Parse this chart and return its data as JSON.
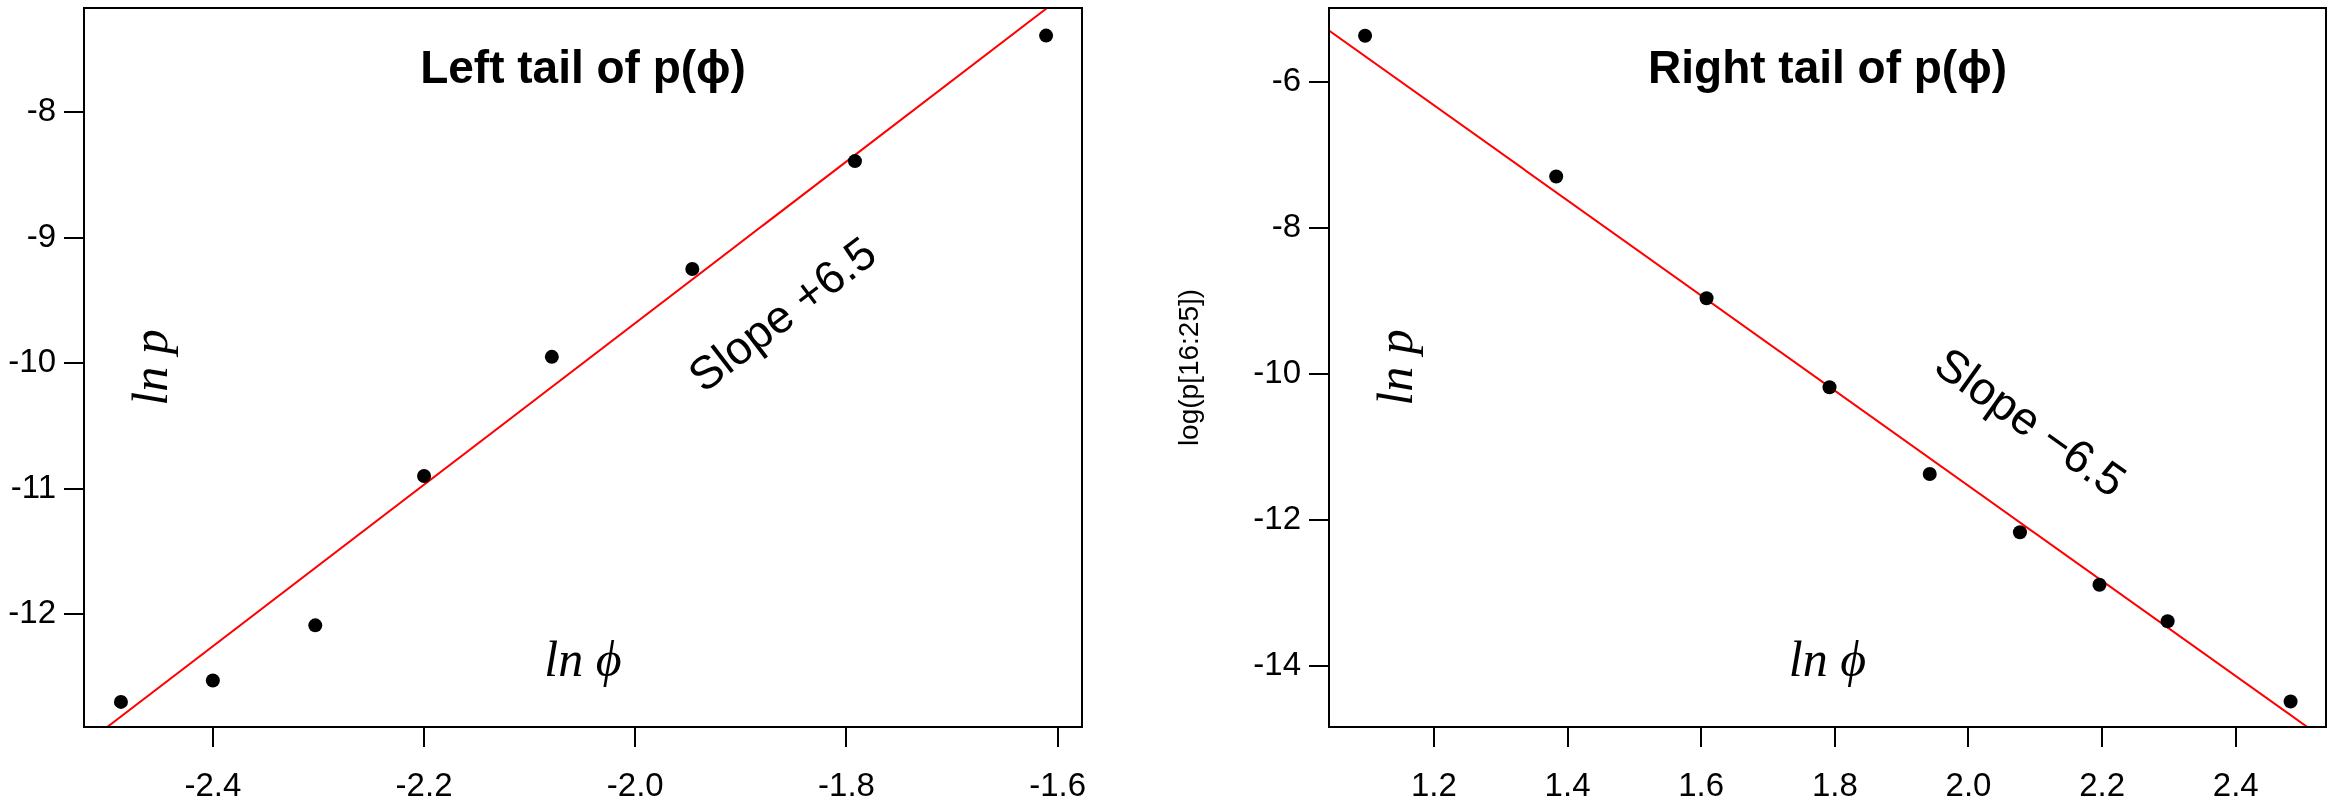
{
  "chart_data": [
    {
      "type": "scatter",
      "title": "Left tail of p(ϕ)",
      "xlabel": "ln ϕ",
      "ylabel": "ln p",
      "xlim": [
        -2.522,
        -1.577
      ],
      "ylim": [
        -12.9,
        -7.17
      ],
      "xticks": [
        -2.4,
        -2.2,
        {
          "value": -2,
          "label": "-2.0"
        },
        -1.8,
        -1.6
      ],
      "yticks": [
        -12,
        -11,
        -10,
        -9,
        -8
      ],
      "series": [
        {
          "color": "#000000",
          "marker": "circle",
          "x": [
            -2.487,
            -2.4,
            -2.303,
            -2.2,
            -2.079,
            -1.946,
            -1.792,
            -1.611
          ],
          "values": [
            -12.7,
            -12.53,
            -12.09,
            -10.9,
            -9.95,
            -9.25,
            -8.39,
            -7.39
          ]
        },
        {
          "type": "line",
          "color": "#ff0000",
          "x": [
            -2.5,
            -1.61
          ],
          "values": [
            -12.9,
            -7.17
          ]
        }
      ],
      "annotations": [
        "Slope +6.5"
      ]
    },
    {
      "type": "scatter",
      "title": "Right tail of p(ϕ)",
      "xlabel": "ln ϕ",
      "ylabel": "ln p",
      "xlim": [
        1.043,
        2.535
      ],
      "ylim": [
        -14.84,
        -4.98
      ],
      "xticks": [
        1.2,
        1.4,
        1.6,
        1.8,
        {
          "value": 2,
          "label": "2.0"
        },
        2.2,
        2.4
      ],
      "yticks": [
        -14,
        -12,
        -10,
        -8,
        -6
      ],
      "series": [
        {
          "color": "#000000",
          "marker": "circle",
          "x": [
            1.097,
            1.383,
            1.608,
            1.792,
            1.942,
            2.077,
            2.196,
            2.298,
            2.482
          ],
          "values": [
            -5.36,
            -7.29,
            -8.96,
            -10.18,
            -11.37,
            -12.17,
            -12.89,
            -13.39,
            -14.49
          ]
        },
        {
          "type": "line",
          "color": "#ff0000",
          "x": [
            1.043,
            2.507
          ],
          "values": [
            -5.29,
            -14.84
          ]
        }
      ],
      "annotations": [
        "Slope −6.5",
        "log(p[16:25])"
      ]
    }
  ]
}
